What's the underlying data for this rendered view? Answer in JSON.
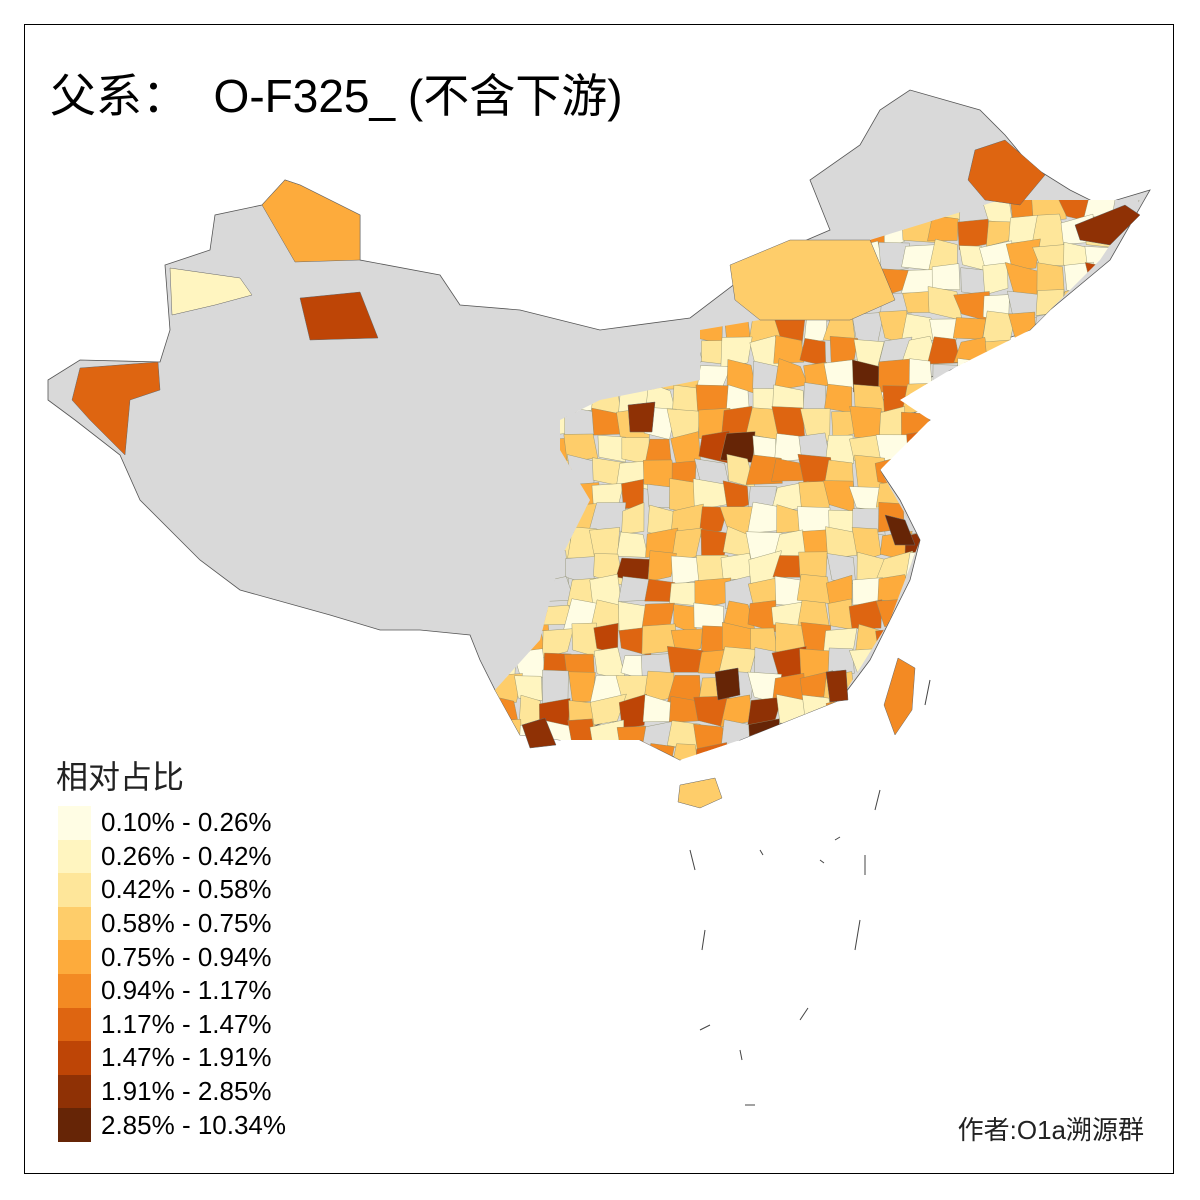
{
  "title": "父系：  O-F325_ (不含下游)",
  "legend": {
    "title": "相对占比",
    "items": [
      {
        "label": "0.10% - 0.26%",
        "color": "#FFFDE4"
      },
      {
        "label": "0.26% - 0.42%",
        "color": "#FFF5C0"
      },
      {
        "label": "0.42% - 0.58%",
        "color": "#FEE69A"
      },
      {
        "label": "0.58% - 0.75%",
        "color": "#FECD6A"
      },
      {
        "label": "0.75% - 0.94%",
        "color": "#FDAB3C"
      },
      {
        "label": "0.94% - 1.17%",
        "color": "#F38A23"
      },
      {
        "label": "1.17% - 1.47%",
        "color": "#DE6511"
      },
      {
        "label": "1.47% - 1.91%",
        "color": "#BE4506"
      },
      {
        "label": "1.91% - 2.85%",
        "color": "#8F3105"
      },
      {
        "label": "2.85% - 10.34%",
        "color": "#662506"
      }
    ]
  },
  "no_data_color": "#D9D9D9",
  "author": "作者:O1a溯源群"
}
